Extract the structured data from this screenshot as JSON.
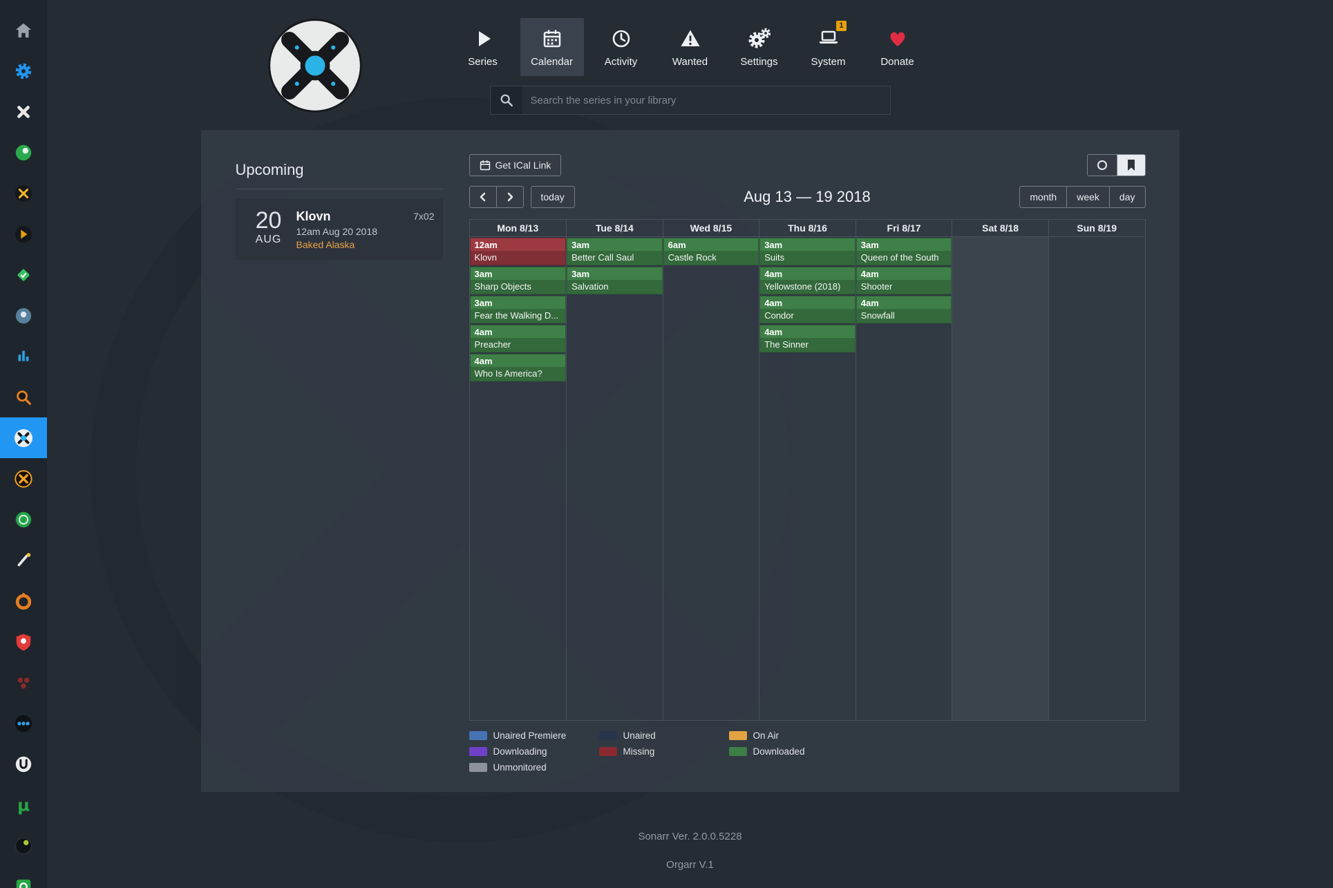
{
  "app": {
    "footer_line1": "Sonarr Ver. 2.0.0.5228",
    "footer_line2": "Orgarr V.1"
  },
  "sidebar": {
    "items": [
      {
        "icon": "home-icon"
      },
      {
        "icon": "gear-icon"
      },
      {
        "icon": "organizr-x-icon"
      },
      {
        "icon": "green-orb-app-icon"
      },
      {
        "icon": "dark-yellow-x-app-icon"
      },
      {
        "icon": "plex-play-app-icon"
      },
      {
        "icon": "green-diamond-app-icon"
      },
      {
        "icon": "blue-orb-app-icon"
      },
      {
        "icon": "equalizer-bars-icon"
      },
      {
        "icon": "orange-magnifier-icon"
      },
      {
        "icon": "sonarr-icon",
        "active": true
      },
      {
        "icon": "yellow-x-app-icon"
      },
      {
        "icon": "green-circle-app-icon"
      },
      {
        "icon": "brush-app-icon"
      },
      {
        "icon": "orange-ring-app-icon"
      },
      {
        "icon": "red-shield-icon"
      },
      {
        "icon": "red-cluster-app-icon"
      },
      {
        "icon": "blue-dots-app-icon"
      },
      {
        "icon": "white-u-app-icon"
      },
      {
        "icon": "utorrent-icon"
      },
      {
        "icon": "dark-green-orb-app-icon"
      },
      {
        "icon": "green-square-app-icon"
      }
    ]
  },
  "topnav": {
    "items": [
      {
        "label": "Series",
        "icon": "play-icon"
      },
      {
        "label": "Calendar",
        "icon": "calendar-icon",
        "active": true
      },
      {
        "label": "Activity",
        "icon": "clock-icon"
      },
      {
        "label": "Wanted",
        "icon": "warning-icon"
      },
      {
        "label": "Settings",
        "icon": "gears-icon"
      },
      {
        "label": "System",
        "icon": "laptop-icon",
        "badge": "1"
      },
      {
        "label": "Donate",
        "icon": "heart-icon"
      }
    ]
  },
  "search": {
    "placeholder": "Search the series in your library",
    "icon": "search-icon"
  },
  "upcoming": {
    "title": "Upcoming",
    "events": [
      {
        "day": "20",
        "month": "AUG",
        "series_title": "Klovn",
        "air_datetime": "12am Aug 20 2018",
        "episode_title": "Baked Alaska",
        "episode_number": "7x02"
      }
    ]
  },
  "calendar": {
    "toolbar": {
      "ical_label": "Get ICal Link",
      "today_label": "today"
    },
    "range_title": "Aug 13 — 19 2018",
    "views": [
      "month",
      "week",
      "day"
    ],
    "days": [
      {
        "label": "Mon 8/13",
        "events": [
          {
            "time": "12am",
            "title": "Klovn",
            "status": "missing"
          },
          {
            "time": "3am",
            "title": "Sharp Objects",
            "status": "downloaded"
          },
          {
            "time": "3am",
            "title": "Fear the Walking D...",
            "status": "downloaded"
          },
          {
            "time": "4am",
            "title": "Preacher",
            "status": "downloaded"
          },
          {
            "time": "4am",
            "title": "Who Is America?",
            "status": "downloaded"
          }
        ]
      },
      {
        "label": "Tue 8/14",
        "events": [
          {
            "time": "3am",
            "title": "Better Call Saul",
            "status": "downloaded"
          },
          {
            "time": "3am",
            "title": "Salvation",
            "status": "downloaded"
          }
        ]
      },
      {
        "label": "Wed 8/15",
        "events": [
          {
            "time": "6am",
            "title": "Castle Rock",
            "status": "downloaded"
          }
        ]
      },
      {
        "label": "Thu 8/16",
        "events": [
          {
            "time": "3am",
            "title": "Suits",
            "status": "downloaded"
          },
          {
            "time": "4am",
            "title": "Yellowstone (2018)",
            "status": "downloaded"
          },
          {
            "time": "4am",
            "title": "Condor",
            "status": "downloaded"
          },
          {
            "time": "4am",
            "title": "The Sinner",
            "status": "downloaded"
          }
        ]
      },
      {
        "label": "Fri 8/17",
        "events": [
          {
            "time": "3am",
            "title": "Queen of the South",
            "status": "downloaded"
          },
          {
            "time": "4am",
            "title": "Shooter",
            "status": "downloaded"
          },
          {
            "time": "4am",
            "title": "Snowfall",
            "status": "downloaded"
          }
        ]
      },
      {
        "label": "Sat 8/18",
        "highlight": true,
        "events": []
      },
      {
        "label": "Sun 8/19",
        "events": []
      }
    ],
    "legend": [
      {
        "label": "Unaired Premiere",
        "color": "#4673b4"
      },
      {
        "label": "Unaired",
        "color": "#28354a"
      },
      {
        "label": "On Air",
        "color": "#e3a344"
      },
      {
        "label": "Downloading",
        "color": "#7040c8"
      },
      {
        "label": "Missing",
        "color": "#8b2a2e"
      },
      {
        "label": "Downloaded",
        "color": "#3e7e47"
      },
      {
        "label": "Unmonitored",
        "color": "#8e939b"
      }
    ]
  }
}
